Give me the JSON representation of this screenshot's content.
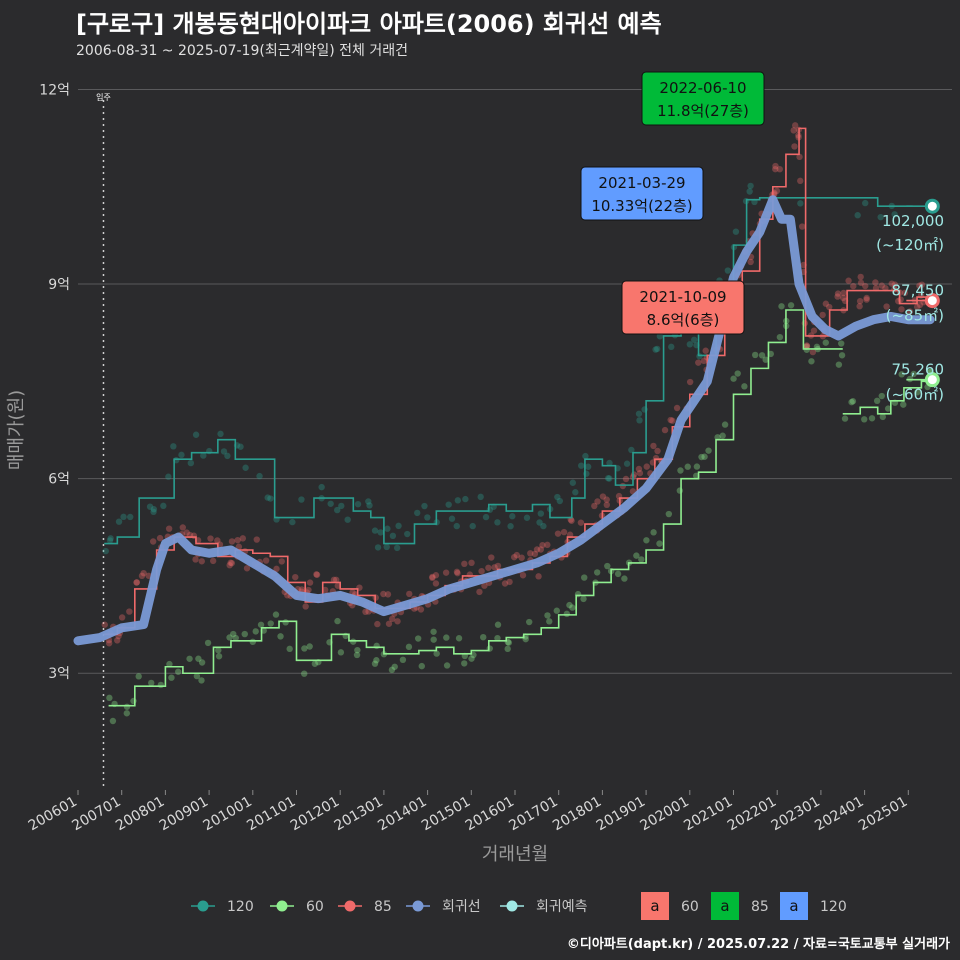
{
  "title": "[구로구] 개봉동현대아이파크 아파트(2006) 회귀선 예측",
  "subtitle": "2006-08-31 ~ 2025-07-19(최근계약일) 전체 거래건",
  "footer": "©디아파트(dapt.kr) / 2025.07.22 / 자료=국토교통부 실거래가",
  "colors": {
    "background": "#2b2b2d",
    "s120": "#2a9d8f",
    "s60": "#90ee90",
    "s85": "#f06a6a",
    "trend": "#7a9ad6",
    "forecast": "#a0e8e4",
    "box60": "#f8766d",
    "box85": "#00ba38",
    "box120": "#619cff"
  },
  "chart_data": {
    "type": "line",
    "xlabel": "거래년월",
    "ylabel": "매매가(원)",
    "x_range": [
      "2006-01",
      "2025-12"
    ],
    "ylim": [
      1.2,
      12.3
    ],
    "y_ticks": [
      {
        "value": 3,
        "label": "3억"
      },
      {
        "value": 6,
        "label": "6억"
      },
      {
        "value": 9,
        "label": "9억"
      },
      {
        "value": 12,
        "label": "12억"
      }
    ],
    "x_ticks": [
      "200601",
      "200701",
      "200801",
      "200901",
      "201001",
      "201101",
      "201201",
      "201301",
      "201401",
      "201501",
      "201601",
      "201701",
      "201801",
      "201901",
      "202001",
      "202101",
      "202201",
      "202301",
      "202401",
      "202501"
    ],
    "occupancy_marker": {
      "x": "2006-08",
      "label": "입주"
    },
    "series": [
      {
        "name": "120",
        "points": [
          [
            2006.6,
            5.0
          ],
          [
            2006.9,
            5.1
          ],
          [
            2007.4,
            5.7
          ],
          [
            2007.9,
            5.7
          ],
          [
            2008.2,
            6.3
          ],
          [
            2008.6,
            6.4
          ],
          [
            2009.2,
            6.6
          ],
          [
            2009.6,
            6.3
          ],
          [
            2010.1,
            6.3
          ],
          [
            2010.5,
            5.4
          ],
          [
            2011.4,
            5.7
          ],
          [
            2011.8,
            5.7
          ],
          [
            2012.3,
            5.5
          ],
          [
            2012.7,
            5.4
          ],
          [
            2013.0,
            5.0
          ],
          [
            2013.3,
            5.0
          ],
          [
            2013.7,
            5.3
          ],
          [
            2014.2,
            5.5
          ],
          [
            2014.6,
            5.5
          ],
          [
            2015.0,
            5.5
          ],
          [
            2015.4,
            5.6
          ],
          [
            2015.8,
            5.5
          ],
          [
            2016.4,
            5.6
          ],
          [
            2016.8,
            5.4
          ],
          [
            2017.3,
            5.7
          ],
          [
            2017.6,
            6.3
          ],
          [
            2018.0,
            6.2
          ],
          [
            2018.3,
            5.9
          ],
          [
            2018.7,
            6.4
          ],
          [
            2019.0,
            7.2
          ],
          [
            2019.4,
            8.2
          ],
          [
            2019.8,
            8.3
          ],
          [
            2020.2,
            7.9
          ],
          [
            2020.6,
            8.9
          ],
          [
            2021.0,
            9.6
          ],
          [
            2021.3,
            10.3
          ],
          [
            2021.6,
            10.33
          ],
          [
            2024.3,
            10.2
          ],
          [
            2025.1,
            10.2
          ]
        ]
      },
      {
        "name": "60",
        "points": [
          [
            2006.7,
            2.5
          ],
          [
            2007.0,
            2.5
          ],
          [
            2007.3,
            2.8
          ],
          [
            2008.0,
            3.1
          ],
          [
            2008.4,
            3.0
          ],
          [
            2008.8,
            3.0
          ],
          [
            2009.1,
            3.4
          ],
          [
            2009.5,
            3.5
          ],
          [
            2009.9,
            3.5
          ],
          [
            2010.2,
            3.7
          ],
          [
            2010.6,
            3.8
          ],
          [
            2011.0,
            3.2
          ],
          [
            2011.4,
            3.2
          ],
          [
            2011.8,
            3.6
          ],
          [
            2012.2,
            3.5
          ],
          [
            2012.6,
            3.4
          ],
          [
            2013.0,
            3.3
          ],
          [
            2013.4,
            3.3
          ],
          [
            2013.8,
            3.35
          ],
          [
            2014.2,
            3.4
          ],
          [
            2014.6,
            3.3
          ],
          [
            2015.0,
            3.35
          ],
          [
            2015.4,
            3.5
          ],
          [
            2015.8,
            3.55
          ],
          [
            2016.2,
            3.6
          ],
          [
            2016.6,
            3.7
          ],
          [
            2017.0,
            3.9
          ],
          [
            2017.4,
            4.2
          ],
          [
            2017.8,
            4.4
          ],
          [
            2018.2,
            4.6
          ],
          [
            2018.6,
            4.7
          ],
          [
            2019.0,
            4.9
          ],
          [
            2019.4,
            5.3
          ],
          [
            2019.8,
            6.0
          ],
          [
            2020.2,
            6.1
          ],
          [
            2020.6,
            6.6
          ],
          [
            2021.0,
            7.3
          ],
          [
            2021.4,
            7.7
          ],
          [
            2021.8,
            8.1
          ],
          [
            2022.2,
            8.6
          ],
          [
            2022.6,
            8.0
          ],
          [
            2022.9,
            8.0
          ],
          [
            2023.2,
            8.0
          ],
          [
            2023.5,
            8.0
          ]
        ]
      },
      {
        "name": "60 (recent)",
        "points": [
          [
            2023.5,
            7.0
          ],
          [
            2023.9,
            7.1
          ],
          [
            2024.3,
            7.0
          ],
          [
            2024.6,
            7.2
          ],
          [
            2024.9,
            7.4
          ],
          [
            2025.3,
            7.5
          ],
          [
            2025.55,
            7.526
          ]
        ]
      },
      {
        "name": "85",
        "points": [
          [
            2006.6,
            3.6
          ],
          [
            2006.9,
            3.7
          ],
          [
            2007.3,
            4.3
          ],
          [
            2007.8,
            4.9
          ],
          [
            2008.2,
            5.1
          ],
          [
            2008.7,
            5.0
          ],
          [
            2009.2,
            4.8
          ],
          [
            2009.6,
            4.9
          ],
          [
            2010.0,
            4.85
          ],
          [
            2010.4,
            4.8
          ],
          [
            2010.8,
            4.4
          ],
          [
            2011.2,
            4.1
          ],
          [
            2011.6,
            4.4
          ],
          [
            2012.0,
            4.3
          ],
          [
            2012.4,
            4.2
          ],
          [
            2012.8,
            4.0
          ],
          [
            2013.2,
            4.0
          ],
          [
            2013.6,
            4.1
          ],
          [
            2014.0,
            4.2
          ],
          [
            2014.4,
            4.35
          ],
          [
            2014.8,
            4.5
          ],
          [
            2015.2,
            4.5
          ],
          [
            2015.6,
            4.6
          ],
          [
            2016.0,
            4.6
          ],
          [
            2016.4,
            4.7
          ],
          [
            2016.8,
            4.8
          ],
          [
            2017.2,
            5.1
          ],
          [
            2017.6,
            5.3
          ],
          [
            2018.0,
            5.5
          ],
          [
            2018.4,
            5.7
          ],
          [
            2018.8,
            6.0
          ],
          [
            2019.2,
            6.3
          ],
          [
            2019.6,
            6.8
          ],
          [
            2020.0,
            7.3
          ],
          [
            2020.4,
            7.9
          ],
          [
            2020.8,
            8.3
          ],
          [
            2021.2,
            9.2
          ],
          [
            2021.6,
            10.0
          ],
          [
            2021.9,
            10.5
          ],
          [
            2022.2,
            11.0
          ],
          [
            2022.5,
            11.4
          ],
          [
            2022.65,
            8.2
          ],
          [
            2022.9,
            8.2
          ],
          [
            2023.2,
            8.6
          ],
          [
            2023.6,
            8.9
          ],
          [
            2024.0,
            8.9
          ],
          [
            2024.4,
            8.9
          ],
          [
            2024.8,
            8.7
          ],
          [
            2025.2,
            8.8
          ],
          [
            2025.55,
            8.745
          ]
        ]
      },
      {
        "name": "회귀선",
        "points": [
          [
            2006.0,
            3.5
          ],
          [
            2006.5,
            3.55
          ],
          [
            2007.0,
            3.7
          ],
          [
            2007.5,
            3.75
          ],
          [
            2007.8,
            4.6
          ],
          [
            2008.0,
            5.0
          ],
          [
            2008.3,
            5.1
          ],
          [
            2008.6,
            4.9
          ],
          [
            2009.0,
            4.85
          ],
          [
            2009.5,
            4.9
          ],
          [
            2010.0,
            4.7
          ],
          [
            2010.5,
            4.5
          ],
          [
            2011.0,
            4.2
          ],
          [
            2011.5,
            4.15
          ],
          [
            2012.0,
            4.2
          ],
          [
            2012.5,
            4.1
          ],
          [
            2013.0,
            3.95
          ],
          [
            2013.5,
            4.05
          ],
          [
            2014.0,
            4.15
          ],
          [
            2014.5,
            4.3
          ],
          [
            2015.0,
            4.4
          ],
          [
            2015.5,
            4.5
          ],
          [
            2016.0,
            4.6
          ],
          [
            2016.5,
            4.7
          ],
          [
            2017.0,
            4.85
          ],
          [
            2017.5,
            5.05
          ],
          [
            2018.0,
            5.3
          ],
          [
            2018.5,
            5.55
          ],
          [
            2019.0,
            5.85
          ],
          [
            2019.5,
            6.3
          ],
          [
            2019.8,
            6.9
          ],
          [
            2020.1,
            7.2
          ],
          [
            2020.4,
            7.5
          ],
          [
            2020.7,
            8.3
          ],
          [
            2021.0,
            9.1
          ],
          [
            2021.3,
            9.5
          ],
          [
            2021.6,
            9.8
          ],
          [
            2021.9,
            10.3
          ],
          [
            2022.1,
            10.0
          ],
          [
            2022.3,
            10.0
          ],
          [
            2022.5,
            9.0
          ],
          [
            2022.8,
            8.5
          ],
          [
            2023.1,
            8.3
          ],
          [
            2023.4,
            8.2
          ],
          [
            2023.8,
            8.35
          ],
          [
            2024.2,
            8.45
          ],
          [
            2024.6,
            8.5
          ],
          [
            2025.0,
            8.45
          ],
          [
            2025.5,
            8.45
          ]
        ]
      }
    ],
    "forecast_points": [
      {
        "x": 2025.55,
        "y": 10.2,
        "label": "102,000",
        "sublabel": "(~120㎡)",
        "color": "#2a9d8f"
      },
      {
        "x": 2025.55,
        "y": 8.745,
        "label": "87,450",
        "sublabel": "(~85㎡)",
        "color": "#f06a6a"
      },
      {
        "x": 2025.55,
        "y": 7.526,
        "label": "75,260",
        "sublabel": "(~60㎡)",
        "color": "#90ee90"
      }
    ],
    "annotations": [
      {
        "text1": "2022-06-10",
        "text2": "11.8억(27층)",
        "x": 2022.44,
        "y": 11.8,
        "fill": "#00ba38"
      },
      {
        "text1": "2021-03-29",
        "text2": "10.33억(22층)",
        "x": 2021.24,
        "y": 10.33,
        "fill": "#619cff"
      },
      {
        "text1": "2021-10-09",
        "text2": "8.6억(6층)",
        "x": 2021.77,
        "y": 8.6,
        "fill": "#f8766d"
      }
    ],
    "legend": {
      "position": "bottom",
      "items": [
        {
          "label": "120",
          "color": "#2a9d8f"
        },
        {
          "label": "60",
          "color": "#90ee90"
        },
        {
          "label": "85",
          "color": "#f06a6a"
        },
        {
          "label": "회귀선",
          "color": "#7a9ad6"
        },
        {
          "label": "회귀예측",
          "color": "#a0e8e4"
        }
      ],
      "box_glyph": "a",
      "box_items": [
        {
          "label": "60",
          "color": "#f8766d"
        },
        {
          "label": "85",
          "color": "#00ba38"
        },
        {
          "label": "120",
          "color": "#619cff"
        }
      ]
    }
  }
}
